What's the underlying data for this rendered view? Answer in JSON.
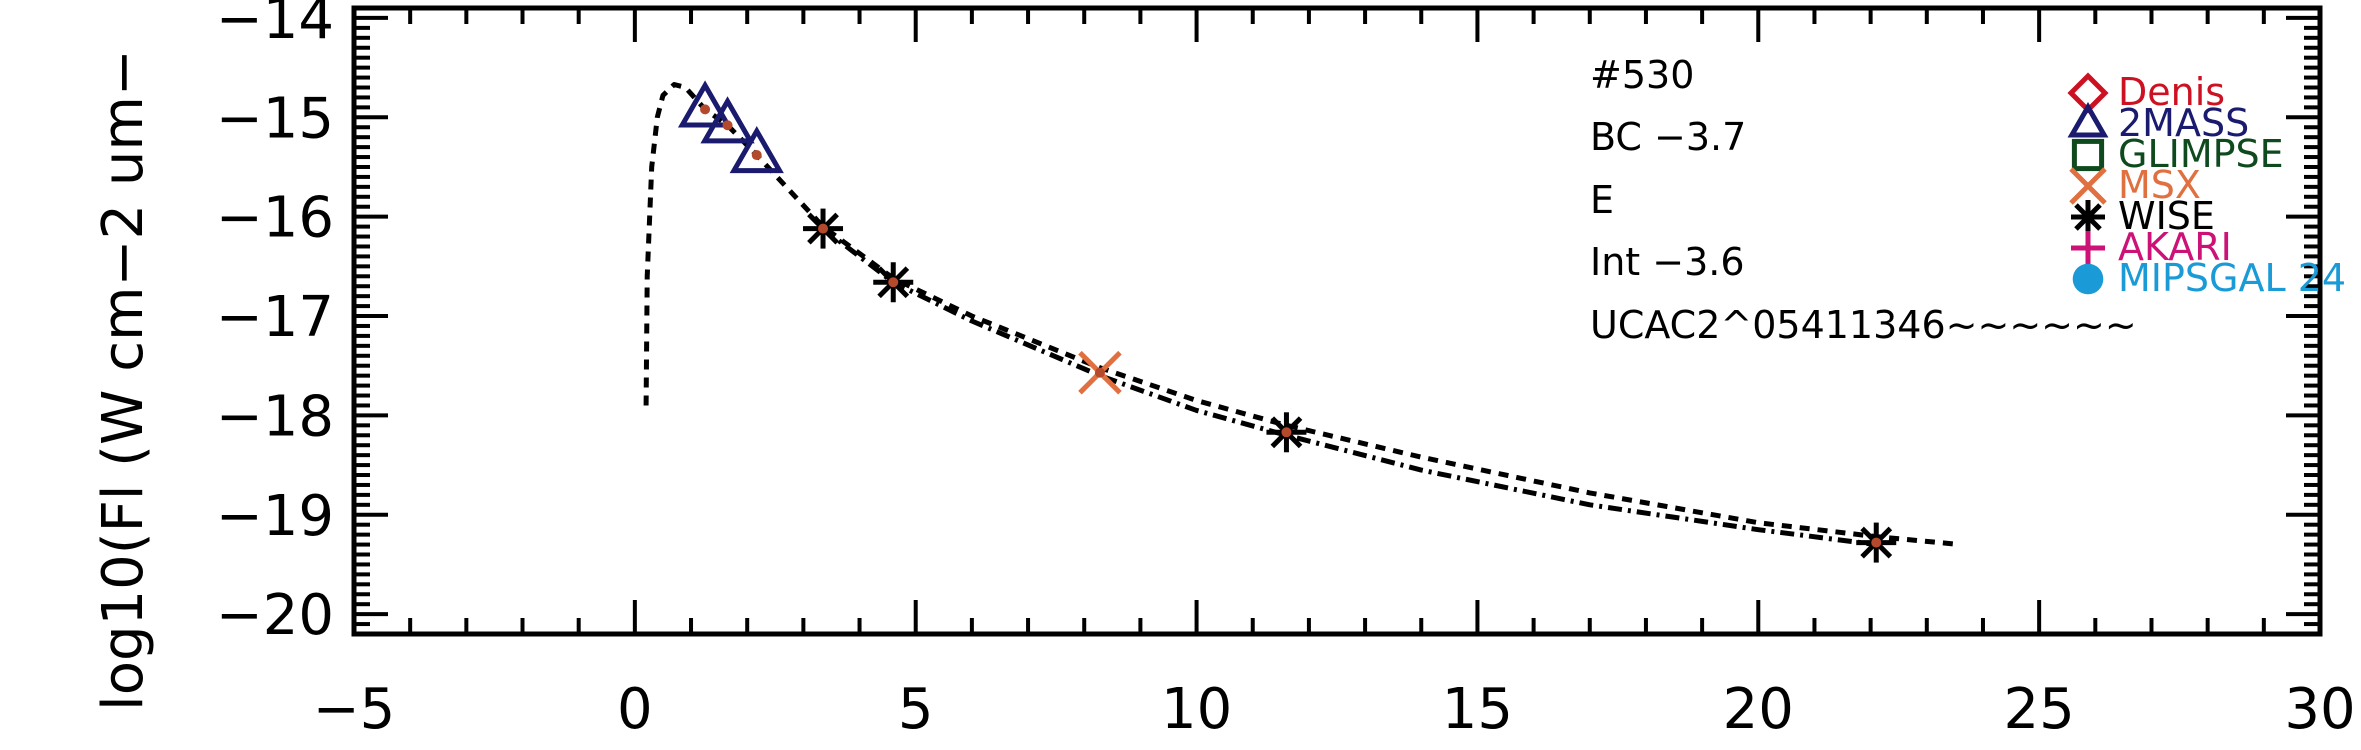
{
  "chart_data": {
    "type": "scatter",
    "title": "",
    "xlabel": "",
    "ylabel": "log10(Fl (W cm−2 um−",
    "xlim": [
      -5,
      30
    ],
    "ylim": [
      -20.2,
      -13.9
    ],
    "x_ticks": [
      -5,
      0,
      5,
      10,
      15,
      20,
      25,
      30
    ],
    "x_tick_labels": [
      "−5",
      "0",
      "5",
      "10",
      "15",
      "20",
      "25",
      "30"
    ],
    "y_ticks": [
      -20,
      -19,
      -18,
      -17,
      -16,
      -15,
      -14
    ],
    "y_tick_labels": [
      "−20",
      "−19",
      "−18",
      "−17",
      "−16",
      "−15",
      "−14"
    ],
    "grid": false,
    "annotations": [
      "#530",
      "BC −3.7",
      "E",
      "Int −3.6",
      "UCAC2^05411346~~~~~~"
    ],
    "legend": {
      "placement": "top-right",
      "entries": [
        {
          "label": "Denis",
          "marker": "diamond",
          "color": "#cc1122"
        },
        {
          "label": "2MASS",
          "marker": "triangle",
          "color": "#1a1a6e"
        },
        {
          "label": "GLIMPSE",
          "marker": "square",
          "color": "#0e4a1e"
        },
        {
          "label": "MSX",
          "marker": "x",
          "color": "#e07040"
        },
        {
          "label": "WISE",
          "marker": "asterisk",
          "color": "#000000"
        },
        {
          "label": "AKARI",
          "marker": "plus",
          "color": "#cc1177"
        },
        {
          "label": "MIPSGAL 24",
          "marker": "circle",
          "color": "#1a9ad6"
        }
      ]
    },
    "series": [
      {
        "source": "2MASS",
        "marker": "triangle",
        "color": "#1a1a6e",
        "x": [
          1.25,
          1.65,
          2.17
        ],
        "y": [
          -14.92,
          -15.08,
          -15.38
        ]
      },
      {
        "source": "WISE",
        "marker": "asterisk",
        "color": "#000000",
        "x": [
          3.35,
          4.6,
          11.6,
          22.1
        ],
        "y": [
          -16.12,
          -16.66,
          -18.17,
          -19.28
        ]
      },
      {
        "source": "MSX",
        "marker": "x",
        "color": "#e07040",
        "x": [
          8.28
        ],
        "y": [
          -17.57
        ]
      }
    ],
    "model_dashed": {
      "style": "dashed",
      "x": [
        0.2,
        0.22,
        0.3,
        0.4,
        0.5,
        0.7,
        0.9,
        1.25,
        1.65,
        2.17,
        3.35,
        4.6,
        6,
        8.28,
        10,
        11.6,
        14,
        17,
        20,
        22.1,
        23.6
      ],
      "y": [
        -17.9,
        -16.6,
        -15.5,
        -15.0,
        -14.78,
        -14.67,
        -14.7,
        -14.92,
        -15.08,
        -15.38,
        -16.1,
        -16.62,
        -17.0,
        -17.52,
        -17.85,
        -18.1,
        -18.42,
        -18.78,
        -19.08,
        -19.22,
        -19.3
      ]
    },
    "fit_dashdot": {
      "style": "dash-dot",
      "x": [
        3.35,
        4.6,
        6,
        8.28,
        10,
        11.6,
        14,
        17,
        20,
        22.1
      ],
      "y": [
        -16.12,
        -16.66,
        -17.05,
        -17.6,
        -17.95,
        -18.2,
        -18.55,
        -18.9,
        -19.15,
        -19.3
      ]
    }
  }
}
